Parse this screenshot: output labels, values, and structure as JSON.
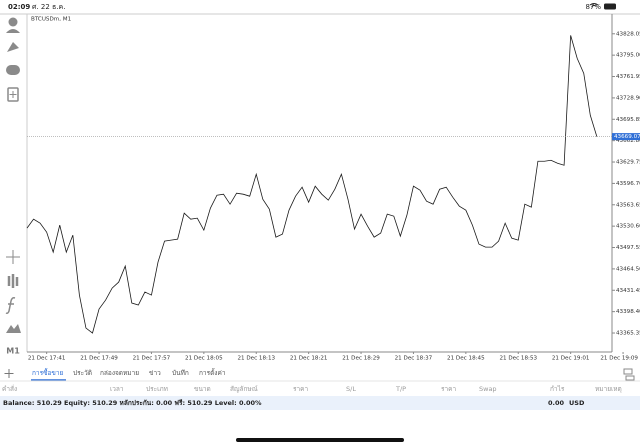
{
  "status_bar": {
    "time": "02:09",
    "date": "ศ. 22 ธ.ค.",
    "battery": "87%"
  },
  "sidebar": {
    "timeframe": "M1"
  },
  "chart_data": {
    "type": "line",
    "title": "BTCUSDm, M1",
    "color": "#1a1a1a",
    "categories": [
      null,
      null,
      null,
      "21 Dec 17:41",
      null,
      null,
      null,
      null,
      null,
      null,
      null,
      "21 Dec 17:49",
      null,
      null,
      null,
      null,
      null,
      null,
      null,
      "21 Dec 17:57",
      null,
      null,
      null,
      null,
      null,
      null,
      null,
      "21 Dec 18:05",
      null,
      null,
      null,
      null,
      null,
      null,
      null,
      "21 Dec 18:13",
      null,
      null,
      null,
      null,
      null,
      null,
      null,
      "21 Dec 18:21",
      null,
      null,
      null,
      null,
      null,
      null,
      null,
      "21 Dec 18:29",
      null,
      null,
      null,
      null,
      null,
      null,
      null,
      "21 Dec 18:37",
      null,
      null,
      null,
      null,
      null,
      null,
      null,
      "21 Dec 18:45",
      null,
      null,
      null,
      null,
      null,
      null,
      null,
      "21 Dec 18:53",
      null,
      null,
      null,
      null,
      null,
      null,
      null,
      "21 Dec 19:01",
      null,
      null,
      null,
      null,
      null,
      null,
      null,
      "21 Dec 19:09"
    ],
    "values": [
      43527.51,
      43541.41,
      43535.23,
      43521.33,
      43490.45,
      43532.15,
      43490.45,
      43516.7,
      43424.04,
      43373.07,
      43365.35,
      43402.42,
      43416.32,
      43434.85,
      43444.11,
      43468.82,
      43411.68,
      43408.59,
      43428.67,
      43424.04,
      43475.0,
      43507.43,
      43508.98,
      43510.52,
      43550.68,
      43541.41,
      43542.96,
      43524.42,
      43558.4,
      43578.48,
      43580.02,
      43564.58,
      43581.57,
      43580.02,
      43576.93,
      43610.91,
      43572.3,
      43556.86,
      43513.61,
      43518.25,
      43555.31,
      43576.93,
      43590.83,
      43567.67,
      43592.38,
      43580.02,
      43570.76,
      43587.74,
      43610.91,
      43572.3,
      43525.97,
      43549.13,
      43530.6,
      43513.61,
      43519.79,
      43549.13,
      43546.04,
      43515.16,
      43547.59,
      43592.38,
      43586.2,
      43569.21,
      43564.58,
      43587.74,
      43590.83,
      43575.39,
      43561.49,
      43555.31,
      43532.15,
      43502.8,
      43498.17,
      43498.17,
      43507.43,
      43535.23,
      43512.07,
      43508.98,
      43564.58,
      43559.94,
      43630.99,
      43630.99,
      43632.53,
      43627.9,
      43624.81,
      43825.58,
      43790.06,
      43766.89,
      43702.03,
      43669.07,
      null,
      null,
      null,
      null
    ],
    "ylim": [
      43336,
      43854
    ],
    "yticks": [
      43828.05,
      {
        "value": 43795,
        "label": "43795.00"
      },
      43761.95,
      {
        "value": 43728.9,
        "label": "43728.90"
      },
      43695.85,
      {
        "value": 43662.8,
        "label": "43662.80"
      },
      43629.75,
      {
        "value": 43596.7,
        "label": "43596.70"
      },
      43563.65,
      {
        "value": 43530.6,
        "label": "43530.60"
      },
      43497.55,
      {
        "value": 43464.5,
        "label": "43464.50"
      },
      43431.45,
      {
        "value": 43398.4,
        "label": "43398.40"
      },
      43365.35
    ],
    "current_price": 43669.07,
    "current_price_color": "#2f6fd6",
    "grid": false
  },
  "tabs": [
    "การซื้อขาย",
    "ประวัติ",
    "กล่องจดหมาย",
    "ข่าว",
    "บันทึก",
    "การตั้งค่า"
  ],
  "table": {
    "headers": [
      "คำสั่ง",
      "เวลา",
      "ประเภท",
      "ขนาด",
      "สัญลักษณ์",
      "ราคา",
      "S/L",
      "T/P",
      "ราคา",
      "Swap",
      "กำไร",
      "หมายเหตุ"
    ]
  },
  "footer": {
    "balance": "Balance: 510.29 Equity: 510.29 หลักประกัน: 0.00 ฟรี: 510.29 Level: 0.00%",
    "profit": "0.00",
    "currency": "USD"
  }
}
